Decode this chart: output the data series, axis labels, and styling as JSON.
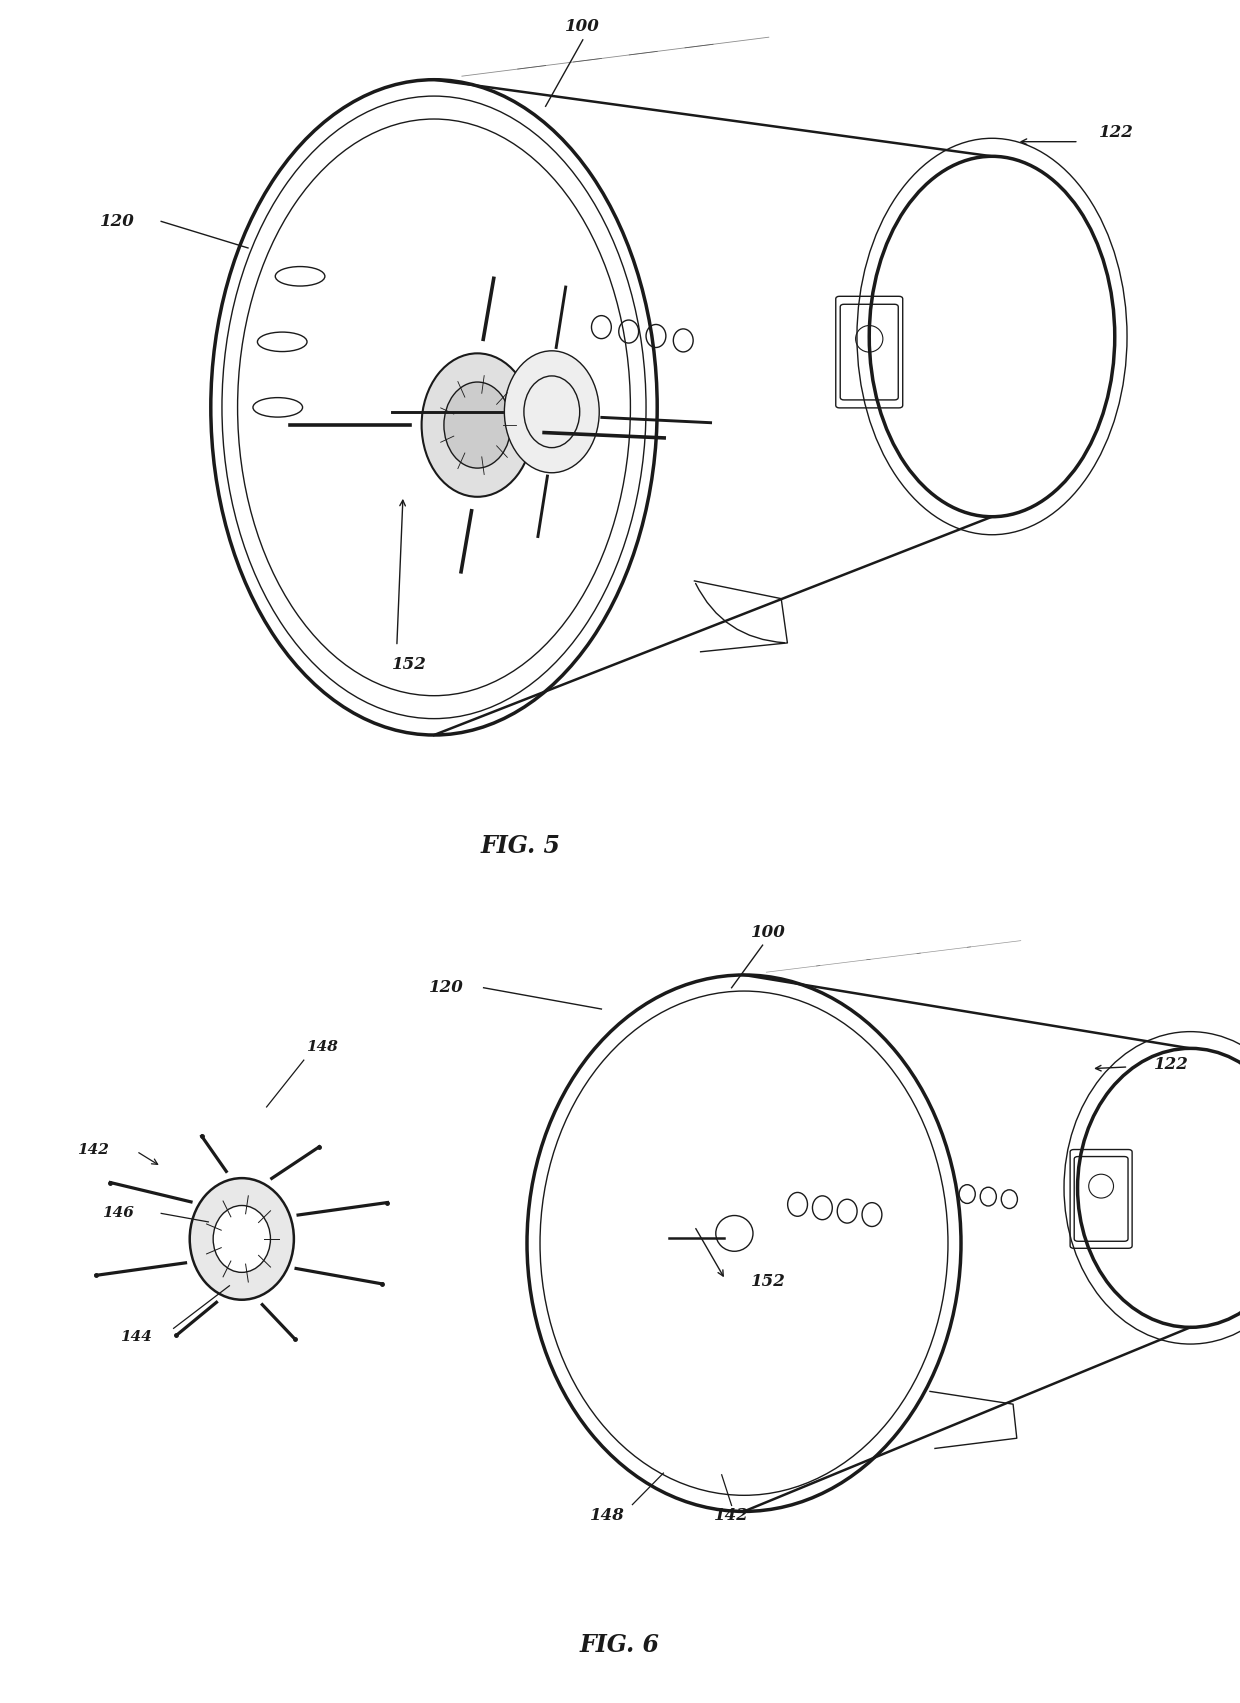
{
  "background_color": "#ffffff",
  "line_color": "#1a1a1a",
  "fig_width": 12.4,
  "fig_height": 17.03,
  "fig5_label": "FIG. 5",
  "fig6_label": "FIG. 6"
}
